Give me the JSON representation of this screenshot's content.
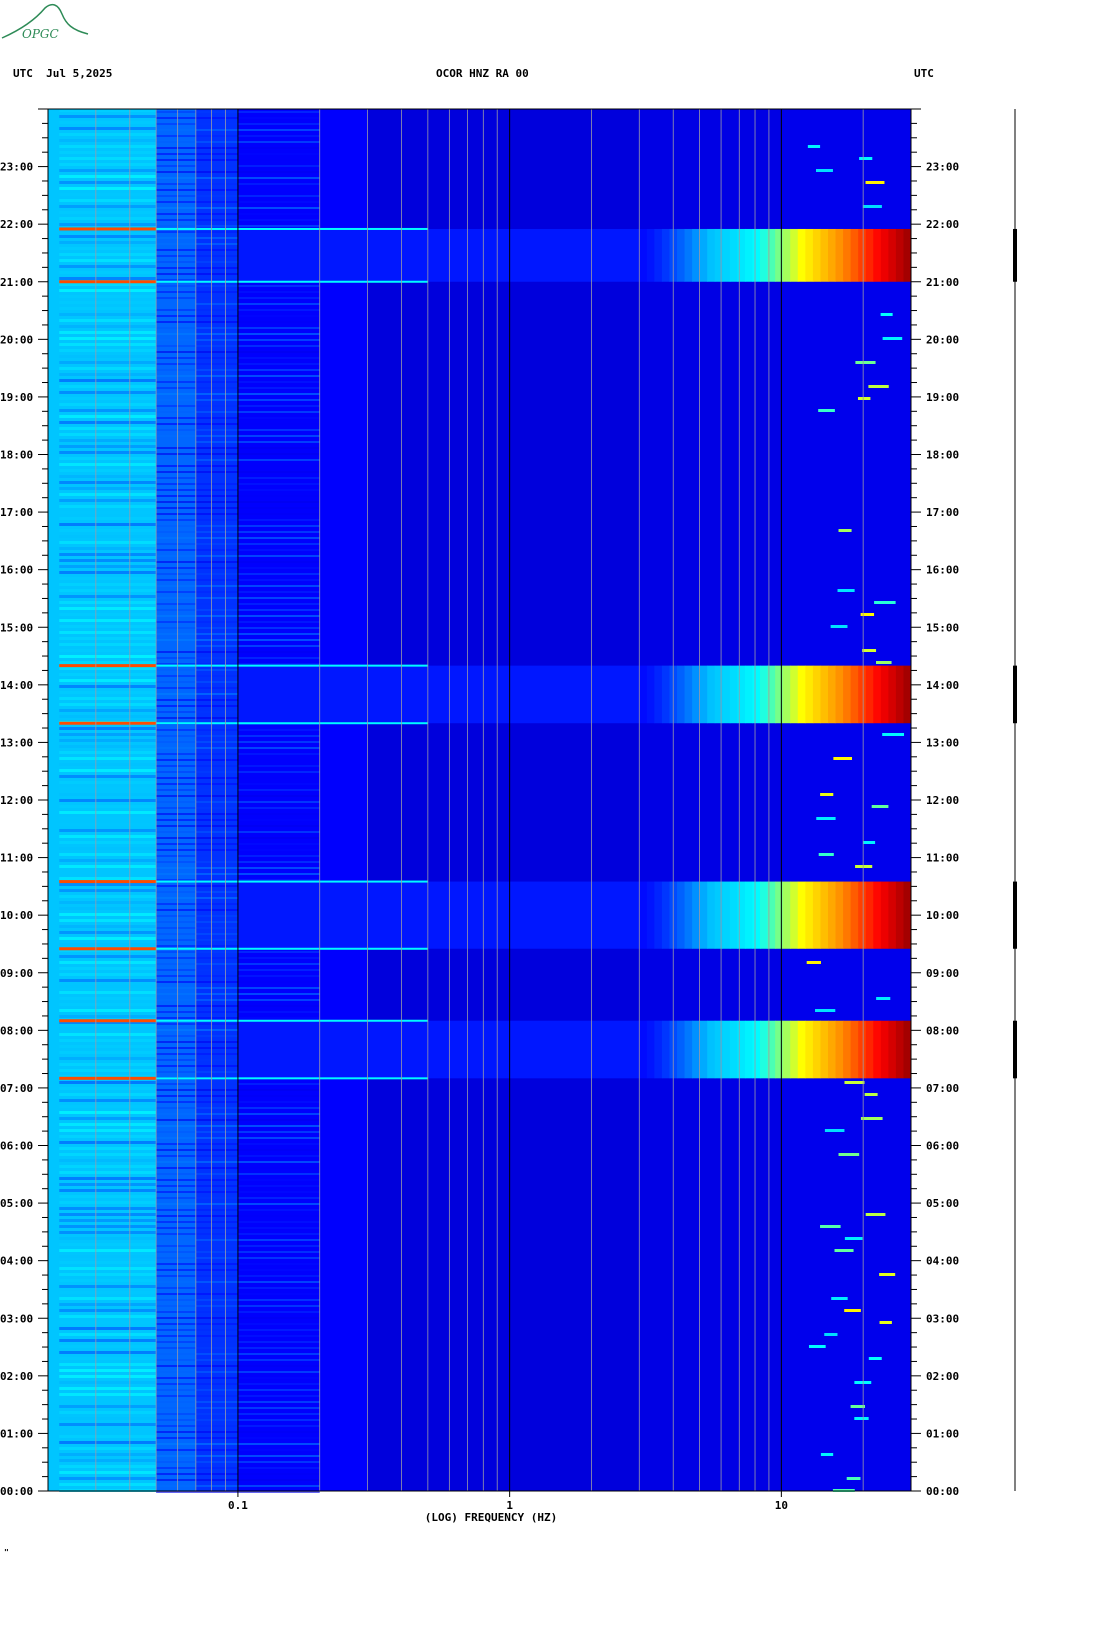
{
  "header": {
    "left": "UTC  Jul 5,2025",
    "center": "OCOR HNZ RA 00",
    "right": "UTC"
  },
  "logo": {
    "text": "OPGC"
  },
  "footer_mark": "\"",
  "chart_data": {
    "type": "heatmap",
    "title": "OCOR HNZ RA 00",
    "date": "Jul 5,2025",
    "timezone": "UTC",
    "xlabel": "(LOG) FREQUENCY (HZ)",
    "x_scale": "log",
    "xlim": [
      0.02,
      30
    ],
    "x_ticks": [
      {
        "value": 0.1,
        "label": "0.1"
      },
      {
        "value": 1,
        "label": "1"
      },
      {
        "value": 10,
        "label": "10"
      }
    ],
    "ylabel": "UTC",
    "ylim_hours": [
      0,
      24
    ],
    "y_ticks": [
      "00:00",
      "01:00",
      "02:00",
      "03:00",
      "04:00",
      "05:00",
      "06:00",
      "07:00",
      "08:00",
      "09:00",
      "10:00",
      "11:00",
      "12:00",
      "13:00",
      "14:00",
      "15:00",
      "16:00",
      "17:00",
      "18:00",
      "19:00",
      "20:00",
      "21:00",
      "22:00",
      "23:00"
    ],
    "colormap": [
      "#00008b",
      "#0000ff",
      "#00bfff",
      "#00ffff",
      "#ffff00",
      "#ff8c00",
      "#ff0000",
      "#8b0000"
    ],
    "events": [
      {
        "start": "07:10",
        "end": "08:10",
        "peak_freq_hz": 20
      },
      {
        "start": "13:20",
        "end": "14:20",
        "peak_freq_hz": 20
      },
      {
        "start": "21:00",
        "end": "21:55",
        "peak_freq_hz": 20
      },
      {
        "start": "09:25",
        "end": "10:35",
        "peak_freq_hz": 25
      }
    ]
  }
}
